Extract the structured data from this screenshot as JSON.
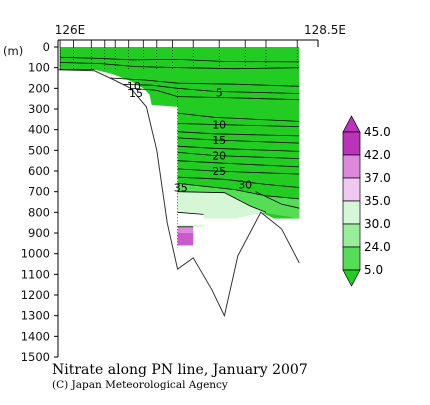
{
  "chart_data": {
    "type": "section-contour",
    "title": "Nitrate along PN line, January 2007",
    "credit": "(C) Japan Meteorological Agency",
    "x_axis": {
      "left_label": "126E",
      "right_label": "128.5E",
      "range": [
        126.0,
        128.5
      ]
    },
    "y_axis": {
      "unit_label": "(m)",
      "range": [
        0,
        1500
      ],
      "ticks": [
        0,
        100,
        200,
        300,
        400,
        500,
        600,
        700,
        800,
        900,
        1000,
        1100,
        1200,
        1300,
        1400,
        1500
      ]
    },
    "station_longitudes": [
      126.02,
      126.15,
      126.32,
      126.45,
      126.55,
      126.68,
      126.82,
      126.95,
      127.1,
      127.3,
      127.55,
      127.8,
      128.0,
      128.3
    ],
    "contour_labels": [
      {
        "text": "5",
        "lon": 127.55,
        "depth": 220
      },
      {
        "text": "10",
        "lon": 127.55,
        "depth": 375
      },
      {
        "text": "15",
        "lon": 127.55,
        "depth": 450
      },
      {
        "text": "20",
        "lon": 127.55,
        "depth": 525
      },
      {
        "text": "25",
        "lon": 127.55,
        "depth": 600
      },
      {
        "text": "30",
        "lon": 127.8,
        "depth": 665
      },
      {
        "text": "35",
        "lon": 127.18,
        "depth": 680
      },
      {
        "text": "10",
        "lon": 126.73,
        "depth": 188
      },
      {
        "text": "15",
        "lon": 126.75,
        "depth": 222
      }
    ],
    "bathymetry": [
      {
        "lon": 126.0,
        "depth": 110
      },
      {
        "lon": 126.35,
        "depth": 115
      },
      {
        "lon": 126.52,
        "depth": 155
      },
      {
        "lon": 126.7,
        "depth": 200
      },
      {
        "lon": 126.85,
        "depth": 290
      },
      {
        "lon": 126.95,
        "depth": 500
      },
      {
        "lon": 127.05,
        "depth": 850
      },
      {
        "lon": 127.15,
        "depth": 1075
      },
      {
        "lon": 127.3,
        "depth": 1020
      },
      {
        "lon": 127.48,
        "depth": 1175
      },
      {
        "lon": 127.6,
        "depth": 1300
      },
      {
        "lon": 127.73,
        "depth": 1010
      },
      {
        "lon": 127.95,
        "depth": 800
      },
      {
        "lon": 128.15,
        "depth": 880
      },
      {
        "lon": 128.32,
        "depth": 1045
      }
    ],
    "colorbar": {
      "labels": [
        "5.0",
        "24.0",
        "30.0",
        "35.0",
        "37.0",
        "42.0",
        "45.0"
      ],
      "colors": [
        "#22cc22",
        "#55dd55",
        "#99ee99",
        "#d6f7d6",
        "#f0c8f0",
        "#dd88dd",
        "#bb33bb"
      ],
      "arrow_low_color": "#22cc22",
      "arrow_high_color": "#bb33bb"
    }
  }
}
